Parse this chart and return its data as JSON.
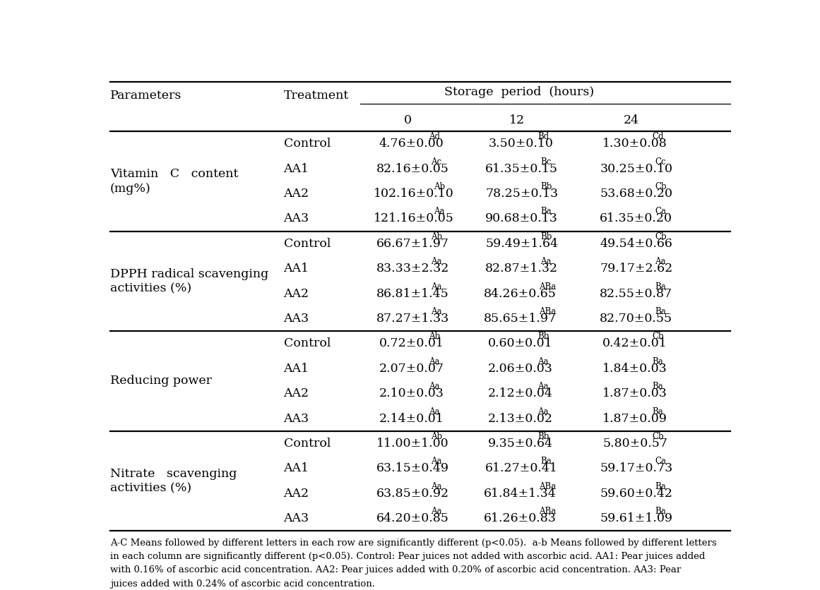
{
  "storage_header": "Storage  period  (hours)",
  "col_headers_sub": [
    "0",
    "12",
    "24"
  ],
  "sections": [
    {
      "param_lines": [
        "Vitamin   C   content",
        "(mg%)"
      ],
      "rows": [
        [
          "Control",
          "4.76±0.00",
          "Ad",
          "3.50±0.10",
          "Bd",
          "1.30±0.08",
          "Cd"
        ],
        [
          "AA1",
          "82.16±0.05",
          "Ac",
          "61.35±0.15",
          "Bc",
          "30.25±0.10",
          "Cc"
        ],
        [
          "AA2",
          "102.16±0.10",
          "Ab",
          "78.25±0.13",
          "Bb",
          "53.68±0.20",
          "Cb"
        ],
        [
          "AA3",
          "121.16±0.05",
          "Aa",
          "90.68±0.13",
          "Ba",
          "61.35±0.20",
          "Ca"
        ]
      ]
    },
    {
      "param_lines": [
        "DPPH radical scavenging",
        "activities (%)"
      ],
      "rows": [
        [
          "Control",
          "66.67±1.97",
          "Ab",
          "59.49±1.64",
          "Bb",
          "49.54±0.66",
          "Cb"
        ],
        [
          "AA1",
          "83.33±2.32",
          "Aa",
          "82.87±1.32",
          "Aa",
          "79.17±2.62",
          "Aa"
        ],
        [
          "AA2",
          "86.81±1.45",
          "Aa",
          "84.26±0.65",
          "ABa",
          "82.55±0.87",
          "Ba"
        ],
        [
          "AA3",
          "87.27±1.33",
          "Aa",
          "85.65±1.97",
          "ABa",
          "82.70±0.55",
          "Ba"
        ]
      ]
    },
    {
      "param_lines": [
        "Reducing power"
      ],
      "rows": [
        [
          "Control",
          "0.72±0.01",
          "Ab",
          "0.60±0.01",
          "Bb",
          "0.42±0.01",
          "Cb"
        ],
        [
          "AA1",
          "2.07±0.07",
          "Aa",
          "2.06±0.03",
          "Aa",
          "1.84±0.03",
          "Ba"
        ],
        [
          "AA2",
          "2.10±0.03",
          "Aa",
          "2.12±0.04",
          "Aa",
          "1.87±0.03",
          "Ba"
        ],
        [
          "AA3",
          "2.14±0.01",
          "Aa",
          "2.13±0.02",
          "Aa",
          "1.87±0.09",
          "Ba"
        ]
      ]
    },
    {
      "param_lines": [
        "Nitrate   scavenging",
        "activities (%)"
      ],
      "rows": [
        [
          "Control",
          "11.00±1.00",
          "Ab",
          "9.35±0.64",
          "Bb",
          "5.80±0.57",
          "Cb"
        ],
        [
          "AA1",
          "63.15±0.49",
          "Aa",
          "61.27±0.41",
          "Ba",
          "59.17±0.73",
          "Ca"
        ],
        [
          "AA2",
          "63.85±0.92",
          "Aa",
          "61.84±1.34",
          "ABa",
          "59.60±0.42",
          "Ba"
        ],
        [
          "AA3",
          "64.20±0.85",
          "Aa",
          "61.26±0.83",
          "ABa",
          "59.61±1.09",
          "Ba"
        ]
      ]
    }
  ],
  "footnote_lines": [
    "A-C Means followed by different letters in each row are significantly different (p<0.05).  a-b Means followed by different letters",
    "in each column are significantly different (p<0.05). Control: Pear juices not added with ascorbic acid. AA1: Pear juices added",
    "with 0.16% of ascorbic acid concentration. AA2: Pear juices added with 0.20% of ascorbic acid concentration. AA3: Pear",
    "juices added with 0.24% of ascorbic acid concentration."
  ],
  "bg_color": "white",
  "text_color": "black",
  "line_color": "black",
  "font_size": 12.5,
  "superscript_size": 8.5,
  "footnote_size": 9.5
}
